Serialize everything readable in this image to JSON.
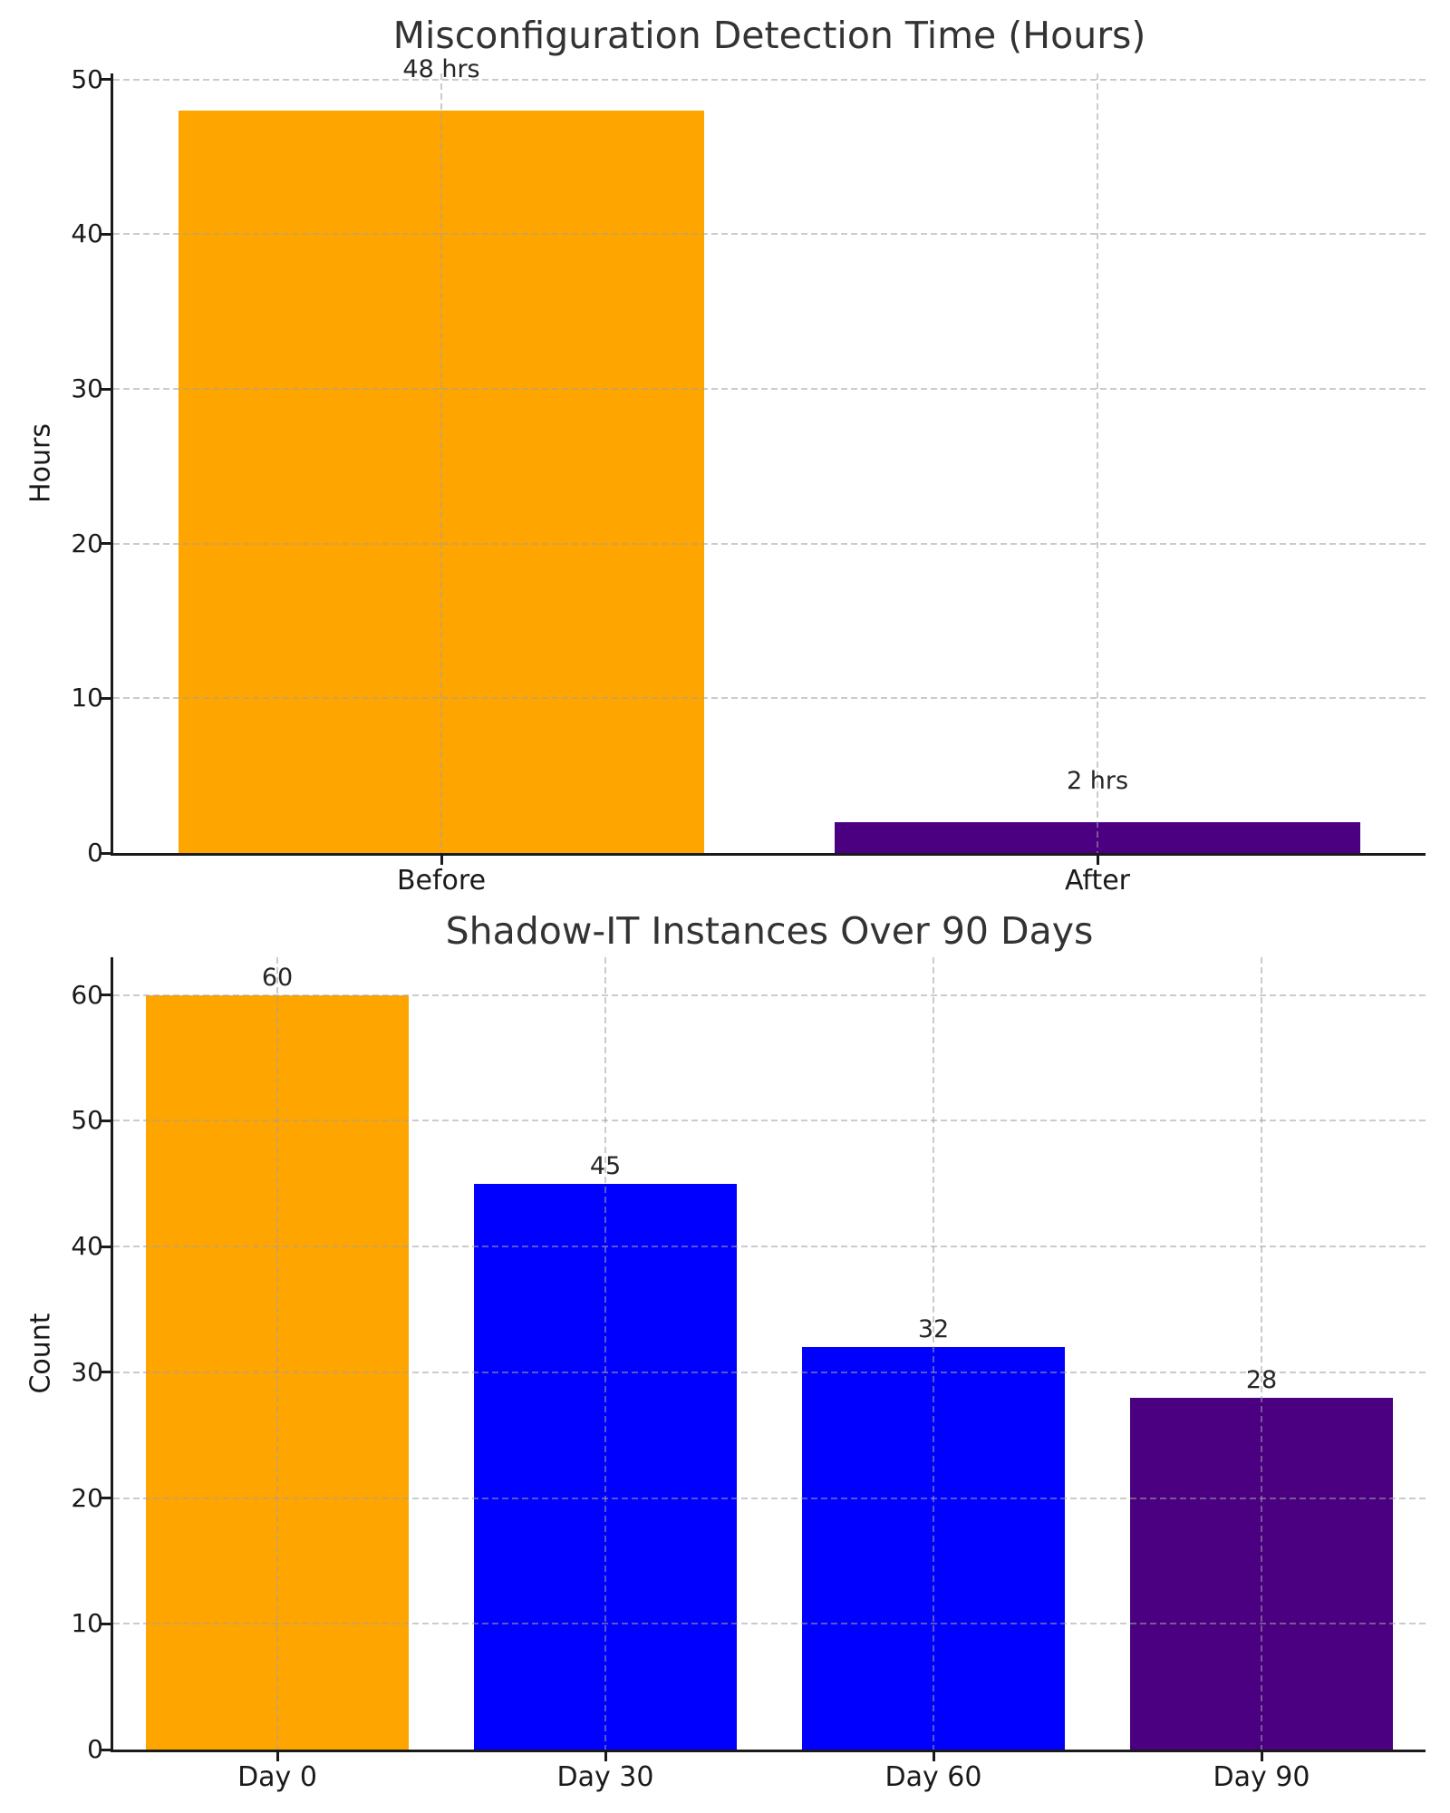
{
  "figure": {
    "background": "#ffffff",
    "spine_color": "#1a1a1a",
    "grid_color": "#a0a0a0",
    "text_color": "#1a1a1a",
    "title_color": "#333333"
  },
  "chart_data": [
    {
      "type": "bar",
      "title": "Misconfiguration Detection Time (Hours)",
      "xlabel": "",
      "ylabel": "Hours",
      "categories": [
        "Before",
        "After"
      ],
      "values": [
        48,
        2
      ],
      "bar_labels": [
        "48 hrs",
        "2 hrs"
      ],
      "bar_colors": [
        "#FFA500",
        "#4B0082"
      ],
      "yticks": [
        0,
        10,
        20,
        30,
        40,
        50
      ],
      "ylim": [
        0,
        50.4
      ],
      "grid": true,
      "grid_style": "dashed",
      "legend": null
    },
    {
      "type": "bar",
      "title": "Shadow-IT Instances Over 90 Days",
      "xlabel": "",
      "ylabel": "Count",
      "categories": [
        "Day 0",
        "Day 30",
        "Day 60",
        "Day 90"
      ],
      "values": [
        60,
        45,
        32,
        28
      ],
      "bar_labels": [
        "60",
        "45",
        "32",
        "28"
      ],
      "bar_colors": [
        "#FFA500",
        "#0000FF",
        "#0000FF",
        "#4B0082"
      ],
      "yticks": [
        0,
        10,
        20,
        30,
        40,
        50,
        60
      ],
      "ylim": [
        0,
        63
      ],
      "grid": true,
      "grid_style": "dashed",
      "legend": null
    }
  ]
}
